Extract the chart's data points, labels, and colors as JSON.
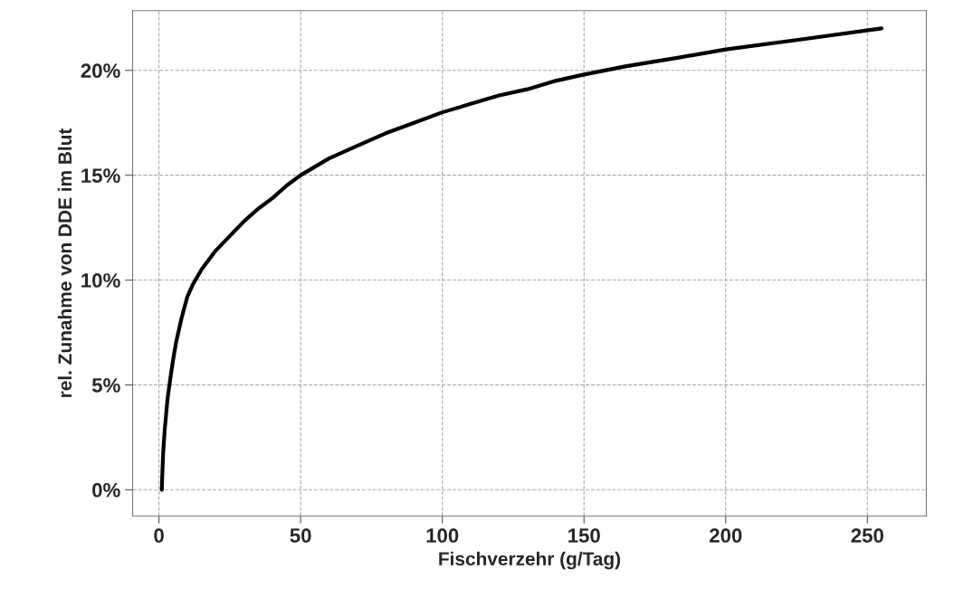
{
  "chart_data": {
    "type": "line",
    "xlabel": "Fischverzehr (g/Tag)",
    "ylabel": "rel. Zunahme von DDE im Blut",
    "x": [
      1.0,
      1.2,
      1.5,
      2,
      3,
      4,
      5,
      6,
      8,
      10,
      12,
      15,
      20,
      25,
      30,
      35,
      40,
      45,
      50,
      60,
      70,
      80,
      90,
      100,
      110,
      120,
      130,
      140,
      150,
      165,
      183,
      200,
      228,
      255
    ],
    "series": [
      {
        "color": "#000000",
        "values": [
          0,
          0.8,
          1.8,
          2.8,
          4.3,
          5.3,
          6.2,
          7.0,
          8.2,
          9.2,
          9.8,
          10.5,
          11.4,
          12.1,
          12.8,
          13.4,
          13.9,
          14.5,
          15.0,
          15.8,
          16.4,
          17.0,
          17.5,
          18.0,
          18.4,
          18.8,
          19.1,
          19.5,
          19.8,
          20.2,
          20.6,
          21.0,
          21.5,
          22.0
        ]
      }
    ],
    "xlim": [
      -9.3,
      270.8
    ],
    "ylim": [
      -1.25,
      22.85
    ],
    "xticks": [
      0,
      50,
      100,
      150,
      200,
      250
    ],
    "yticks": [
      {
        "value": 0,
        "label": "0%"
      },
      {
        "value": 5,
        "label": "5%"
      },
      {
        "value": 10,
        "label": "10%"
      },
      {
        "value": 15,
        "label": "15%"
      },
      {
        "value": 20,
        "label": "20%"
      }
    ],
    "grid": true
  }
}
